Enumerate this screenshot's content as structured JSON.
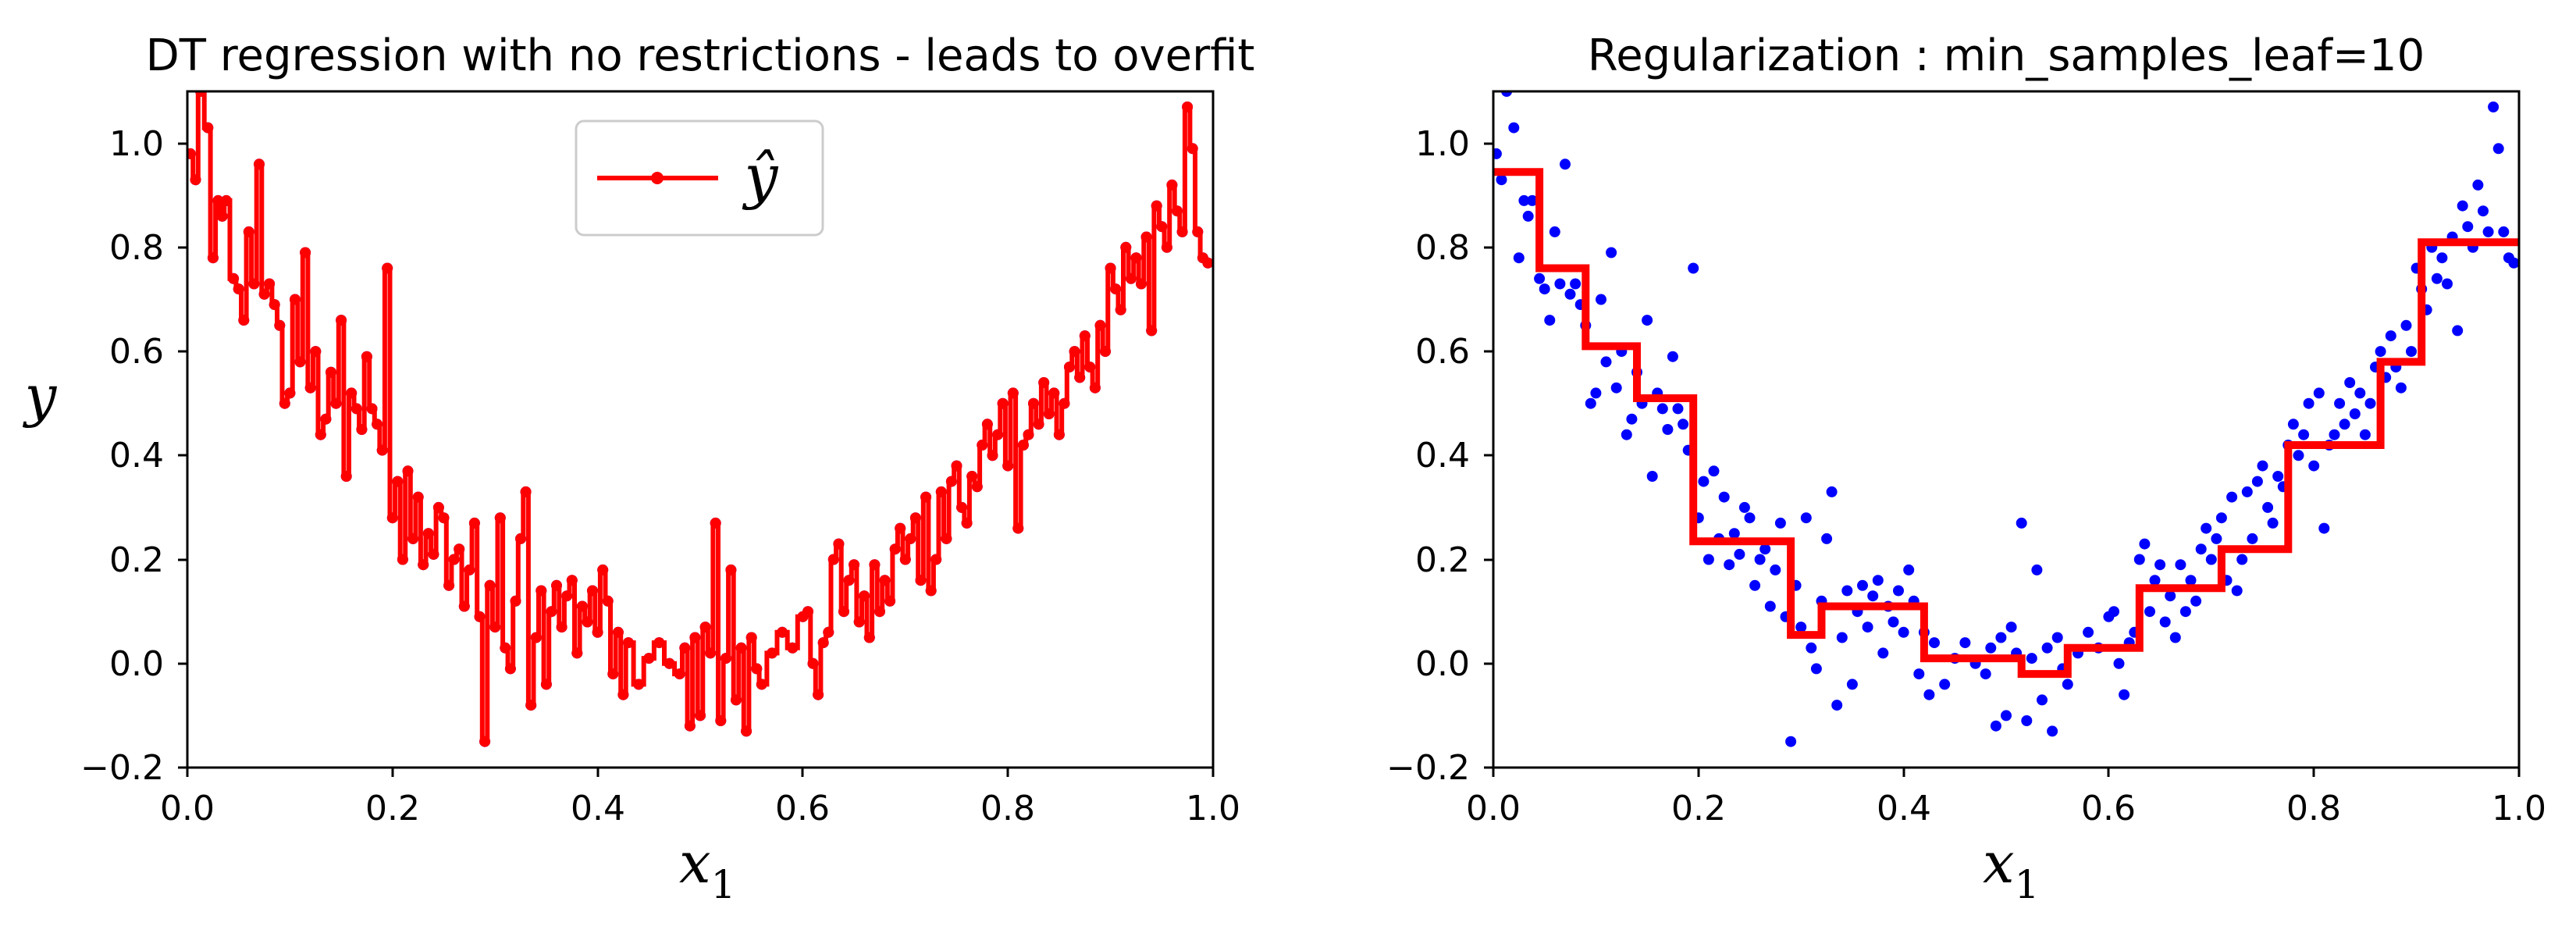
{
  "colors": {
    "points": "#0000ff",
    "prediction": "#ff0000",
    "axes": "#000000"
  },
  "chart_data": [
    {
      "type": "scatter",
      "title": "DT regression with no restrictions - leads to overfit",
      "xlabel": {
        "base": "x",
        "sub": "1"
      },
      "ylabel": "y",
      "xlim": [
        0.0,
        1.0
      ],
      "ylim": [
        -0.2,
        1.1
      ],
      "xticks": [
        "0.0",
        "0.2",
        "0.4",
        "0.6",
        "0.8",
        "1.0"
      ],
      "yticks": [
        "−0.2",
        "0.0",
        "0.2",
        "0.4",
        "0.6",
        "0.8",
        "1.0"
      ],
      "legend": {
        "label": "ŷ",
        "placement": "top-center"
      },
      "prediction_style": "step-with-markers"
    },
    {
      "type": "scatter",
      "title": "Regularization : min_samples_leaf=10",
      "xlabel": {
        "base": "x",
        "sub": "1"
      },
      "ylabel": "",
      "xlim": [
        0.0,
        1.0
      ],
      "ylim": [
        -0.2,
        1.1
      ],
      "xticks": [
        "0.0",
        "0.2",
        "0.4",
        "0.6",
        "0.8",
        "1.0"
      ],
      "yticks": [
        "−0.2",
        "0.0",
        "0.2",
        "0.4",
        "0.6",
        "0.8",
        "1.0"
      ],
      "prediction_style": "step",
      "prediction": [
        {
          "x0": 0.0,
          "x1": 0.045,
          "y": 0.945
        },
        {
          "x0": 0.045,
          "x1": 0.09,
          "y": 0.76
        },
        {
          "x0": 0.09,
          "x1": 0.14,
          "y": 0.61
        },
        {
          "x0": 0.14,
          "x1": 0.195,
          "y": 0.51
        },
        {
          "x0": 0.195,
          "x1": 0.29,
          "y": 0.235
        },
        {
          "x0": 0.29,
          "x1": 0.32,
          "y": 0.055
        },
        {
          "x0": 0.32,
          "x1": 0.42,
          "y": 0.11
        },
        {
          "x0": 0.42,
          "x1": 0.515,
          "y": 0.01
        },
        {
          "x0": 0.515,
          "x1": 0.56,
          "y": -0.02
        },
        {
          "x0": 0.56,
          "x1": 0.63,
          "y": 0.03
        },
        {
          "x0": 0.63,
          "x1": 0.71,
          "y": 0.145
        },
        {
          "x0": 0.71,
          "x1": 0.775,
          "y": 0.22
        },
        {
          "x0": 0.775,
          "x1": 0.865,
          "y": 0.42
        },
        {
          "x0": 0.865,
          "x1": 0.905,
          "y": 0.58
        },
        {
          "x0": 0.905,
          "x1": 1.0,
          "y": 0.81
        }
      ]
    }
  ],
  "scatter_points": [
    [
      0.003,
      0.98
    ],
    [
      0.008,
      0.93
    ],
    [
      0.013,
      1.1
    ],
    [
      0.02,
      1.03
    ],
    [
      0.025,
      0.78
    ],
    [
      0.03,
      0.89
    ],
    [
      0.034,
      0.86
    ],
    [
      0.038,
      0.89
    ],
    [
      0.045,
      0.74
    ],
    [
      0.05,
      0.72
    ],
    [
      0.055,
      0.66
    ],
    [
      0.06,
      0.83
    ],
    [
      0.065,
      0.73
    ],
    [
      0.07,
      0.96
    ],
    [
      0.075,
      0.71
    ],
    [
      0.08,
      0.73
    ],
    [
      0.085,
      0.69
    ],
    [
      0.09,
      0.65
    ],
    [
      0.095,
      0.5
    ],
    [
      0.1,
      0.52
    ],
    [
      0.105,
      0.7
    ],
    [
      0.11,
      0.58
    ],
    [
      0.115,
      0.79
    ],
    [
      0.12,
      0.53
    ],
    [
      0.125,
      0.6
    ],
    [
      0.13,
      0.44
    ],
    [
      0.135,
      0.47
    ],
    [
      0.14,
      0.56
    ],
    [
      0.145,
      0.5
    ],
    [
      0.15,
      0.66
    ],
    [
      0.155,
      0.36
    ],
    [
      0.16,
      0.52
    ],
    [
      0.165,
      0.49
    ],
    [
      0.17,
      0.45
    ],
    [
      0.175,
      0.59
    ],
    [
      0.18,
      0.49
    ],
    [
      0.185,
      0.46
    ],
    [
      0.19,
      0.41
    ],
    [
      0.195,
      0.76
    ],
    [
      0.2,
      0.28
    ],
    [
      0.205,
      0.35
    ],
    [
      0.21,
      0.2
    ],
    [
      0.215,
      0.37
    ],
    [
      0.22,
      0.24
    ],
    [
      0.225,
      0.32
    ],
    [
      0.23,
      0.19
    ],
    [
      0.235,
      0.25
    ],
    [
      0.24,
      0.21
    ],
    [
      0.245,
      0.3
    ],
    [
      0.25,
      0.28
    ],
    [
      0.255,
      0.15
    ],
    [
      0.26,
      0.2
    ],
    [
      0.265,
      0.22
    ],
    [
      0.27,
      0.11
    ],
    [
      0.275,
      0.18
    ],
    [
      0.28,
      0.27
    ],
    [
      0.285,
      0.09
    ],
    [
      0.29,
      -0.15
    ],
    [
      0.295,
      0.15
    ],
    [
      0.3,
      0.07
    ],
    [
      0.305,
      0.28
    ],
    [
      0.31,
      0.03
    ],
    [
      0.315,
      -0.01
    ],
    [
      0.32,
      0.12
    ],
    [
      0.325,
      0.24
    ],
    [
      0.33,
      0.33
    ],
    [
      0.335,
      -0.08
    ],
    [
      0.34,
      0.05
    ],
    [
      0.345,
      0.14
    ],
    [
      0.35,
      -0.04
    ],
    [
      0.355,
      0.1
    ],
    [
      0.36,
      0.15
    ],
    [
      0.365,
      0.07
    ],
    [
      0.37,
      0.13
    ],
    [
      0.375,
      0.16
    ],
    [
      0.38,
      0.02
    ],
    [
      0.385,
      0.11
    ],
    [
      0.39,
      0.08
    ],
    [
      0.395,
      0.14
    ],
    [
      0.4,
      0.06
    ],
    [
      0.405,
      0.18
    ],
    [
      0.41,
      0.12
    ],
    [
      0.415,
      -0.02
    ],
    [
      0.42,
      0.06
    ],
    [
      0.425,
      -0.06
    ],
    [
      0.43,
      0.04
    ],
    [
      0.44,
      -0.04
    ],
    [
      0.45,
      0.01
    ],
    [
      0.46,
      0.04
    ],
    [
      0.47,
      0.0
    ],
    [
      0.48,
      -0.02
    ],
    [
      0.485,
      0.03
    ],
    [
      0.49,
      -0.12
    ],
    [
      0.495,
      0.05
    ],
    [
      0.5,
      -0.1
    ],
    [
      0.505,
      0.07
    ],
    [
      0.51,
      0.02
    ],
    [
      0.515,
      0.27
    ],
    [
      0.52,
      -0.11
    ],
    [
      0.525,
      0.01
    ],
    [
      0.53,
      0.18
    ],
    [
      0.535,
      -0.07
    ],
    [
      0.54,
      0.03
    ],
    [
      0.545,
      -0.13
    ],
    [
      0.55,
      0.05
    ],
    [
      0.555,
      -0.01
    ],
    [
      0.56,
      -0.04
    ],
    [
      0.57,
      0.02
    ],
    [
      0.58,
      0.06
    ],
    [
      0.59,
      0.03
    ],
    [
      0.6,
      0.09
    ],
    [
      0.605,
      0.1
    ],
    [
      0.61,
      0.0
    ],
    [
      0.615,
      -0.06
    ],
    [
      0.62,
      0.04
    ],
    [
      0.625,
      0.06
    ],
    [
      0.63,
      0.2
    ],
    [
      0.635,
      0.23
    ],
    [
      0.64,
      0.1
    ],
    [
      0.645,
      0.16
    ],
    [
      0.65,
      0.19
    ],
    [
      0.655,
      0.08
    ],
    [
      0.66,
      0.13
    ],
    [
      0.665,
      0.05
    ],
    [
      0.67,
      0.19
    ],
    [
      0.675,
      0.1
    ],
    [
      0.68,
      0.16
    ],
    [
      0.685,
      0.12
    ],
    [
      0.69,
      0.22
    ],
    [
      0.695,
      0.26
    ],
    [
      0.7,
      0.2
    ],
    [
      0.705,
      0.24
    ],
    [
      0.71,
      0.28
    ],
    [
      0.715,
      0.16
    ],
    [
      0.72,
      0.32
    ],
    [
      0.725,
      0.14
    ],
    [
      0.73,
      0.2
    ],
    [
      0.735,
      0.33
    ],
    [
      0.74,
      0.24
    ],
    [
      0.745,
      0.35
    ],
    [
      0.75,
      0.38
    ],
    [
      0.755,
      0.3
    ],
    [
      0.76,
      0.27
    ],
    [
      0.765,
      0.36
    ],
    [
      0.77,
      0.34
    ],
    [
      0.775,
      0.42
    ],
    [
      0.78,
      0.46
    ],
    [
      0.785,
      0.4
    ],
    [
      0.79,
      0.44
    ],
    [
      0.795,
      0.5
    ],
    [
      0.8,
      0.38
    ],
    [
      0.805,
      0.52
    ],
    [
      0.81,
      0.26
    ],
    [
      0.815,
      0.42
    ],
    [
      0.82,
      0.44
    ],
    [
      0.825,
      0.5
    ],
    [
      0.83,
      0.46
    ],
    [
      0.835,
      0.54
    ],
    [
      0.84,
      0.48
    ],
    [
      0.845,
      0.52
    ],
    [
      0.85,
      0.44
    ],
    [
      0.855,
      0.5
    ],
    [
      0.86,
      0.57
    ],
    [
      0.865,
      0.6
    ],
    [
      0.87,
      0.55
    ],
    [
      0.875,
      0.63
    ],
    [
      0.88,
      0.57
    ],
    [
      0.885,
      0.53
    ],
    [
      0.89,
      0.65
    ],
    [
      0.895,
      0.6
    ],
    [
      0.9,
      0.76
    ],
    [
      0.905,
      0.72
    ],
    [
      0.91,
      0.68
    ],
    [
      0.915,
      0.8
    ],
    [
      0.92,
      0.74
    ],
    [
      0.925,
      0.78
    ],
    [
      0.93,
      0.73
    ],
    [
      0.935,
      0.82
    ],
    [
      0.94,
      0.64
    ],
    [
      0.945,
      0.88
    ],
    [
      0.95,
      0.84
    ],
    [
      0.955,
      0.8
    ],
    [
      0.96,
      0.92
    ],
    [
      0.965,
      0.87
    ],
    [
      0.97,
      0.83
    ],
    [
      0.975,
      1.07
    ],
    [
      0.98,
      0.99
    ],
    [
      0.985,
      0.83
    ],
    [
      0.99,
      0.78
    ],
    [
      0.995,
      0.77
    ]
  ]
}
